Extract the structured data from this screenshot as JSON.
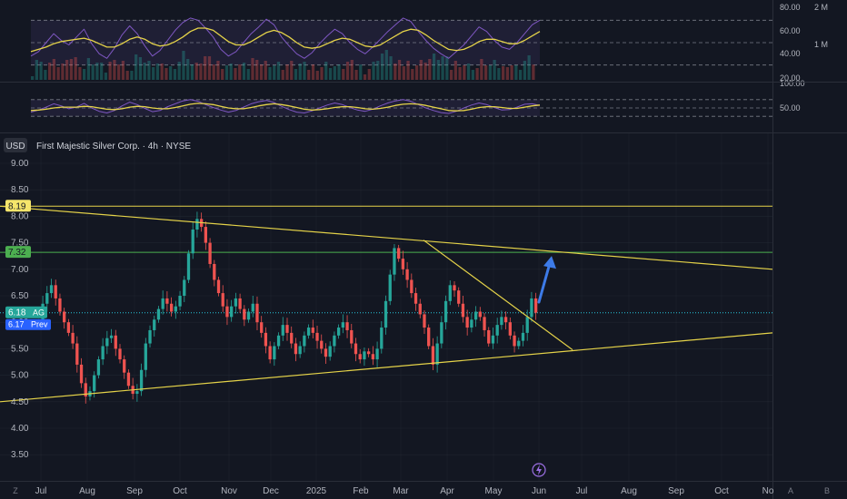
{
  "symbol": {
    "currency": "USD",
    "title": "First Majestic Silver Corp. · 4h · NYSE"
  },
  "colors": {
    "background": "#131722",
    "panel": "#1e2230",
    "grid": "#2a2e39",
    "up": "#26a69a",
    "down": "#ef5350",
    "trendline": "#e5d349",
    "level": "#4caf50",
    "rsi": "#7e57c2",
    "rsi_ma": "#e5d349",
    "arrow": "#3d7be8",
    "price_line": "#26c6da"
  },
  "labels": {
    "level_upper": "8.19",
    "level_green": "7.32",
    "price_last": "6.18",
    "price_last_tag": "AG",
    "price_prev": "6.17",
    "price_prev_tag": "Prev"
  },
  "bottom_bar": {
    "left_button": "Z",
    "right_button_a": "A",
    "right_button_b": "B"
  },
  "chart_data": [
    {
      "type": "line",
      "panel": "indicator-1",
      "y_ticks": [
        "80.00",
        "60.00",
        "40.00",
        "20.00"
      ],
      "volume_ticks": [
        "2 M",
        "1 M"
      ],
      "ylim": [
        20,
        80
      ],
      "bands": [
        70,
        50,
        30
      ],
      "series": [
        {
          "values": [
            38,
            42,
            50,
            58,
            52,
            48,
            55,
            62,
            49,
            40,
            36,
            45,
            57,
            65,
            58,
            47,
            38,
            43,
            52,
            61,
            68,
            72,
            70,
            63,
            55,
            44,
            38,
            42,
            50,
            58,
            64,
            71,
            66,
            55,
            47,
            40,
            36,
            41,
            49,
            56,
            62,
            58,
            50,
            44,
            40,
            46,
            53,
            60,
            66,
            72,
            69,
            60,
            52,
            45,
            40,
            36,
            42,
            48,
            56,
            64,
            60,
            52,
            46,
            44,
            50,
            58,
            66,
            70
          ]
        },
        {
          "values": [
            42,
            44,
            46,
            49,
            51,
            52,
            53,
            54,
            52,
            49,
            46,
            46,
            49,
            53,
            55,
            53,
            49,
            47,
            48,
            51,
            55,
            60,
            63,
            63,
            61,
            56,
            51,
            48,
            48,
            51,
            55,
            59,
            61,
            59,
            55,
            50,
            46,
            45,
            46,
            49,
            52,
            54,
            53,
            50,
            47,
            46,
            48,
            52,
            56,
            60,
            62,
            61,
            57,
            52,
            48,
            44,
            43,
            44,
            47,
            51,
            53,
            53,
            51,
            49,
            49,
            52,
            56,
            60
          ]
        }
      ]
    },
    {
      "type": "line",
      "panel": "indicator-2",
      "y_ticks": [
        "100.00",
        "50.00"
      ],
      "ylim": [
        0,
        100
      ],
      "bands": [
        70,
        50,
        30
      ],
      "series": [
        {
          "values": [
            40,
            45,
            52,
            60,
            55,
            48,
            52,
            61,
            50,
            42,
            38,
            44,
            55,
            64,
            58,
            49,
            41,
            44,
            53,
            60,
            67,
            70,
            66,
            58,
            51,
            45,
            40,
            44,
            52,
            60,
            65,
            68,
            63,
            54,
            46,
            40,
            38,
            43,
            50,
            57,
            62,
            58,
            51,
            45,
            42,
            47,
            55,
            62,
            67,
            70,
            66,
            58,
            50,
            44,
            39,
            37,
            42,
            50,
            57,
            62,
            58,
            51,
            45,
            46,
            52,
            59,
            60,
            56
          ]
        },
        {
          "values": [
            44,
            45,
            47,
            50,
            52,
            52,
            52,
            54,
            53,
            50,
            47,
            46,
            48,
            52,
            54,
            53,
            50,
            48,
            48,
            51,
            55,
            59,
            61,
            60,
            58,
            54,
            50,
            48,
            48,
            51,
            55,
            58,
            60,
            58,
            55,
            51,
            47,
            45,
            46,
            48,
            51,
            53,
            53,
            51,
            48,
            47,
            49,
            52,
            56,
            59,
            60,
            59,
            56,
            52,
            48,
            44,
            43,
            44,
            47,
            51,
            53,
            53,
            51,
            49,
            49,
            52,
            55,
            57
          ]
        }
      ]
    },
    {
      "type": "candlestick",
      "panel": "price",
      "ylabel": "USD",
      "ylim": [
        3.0,
        9.4
      ],
      "y_ticks": [
        "9.00",
        "8.50",
        "8.00",
        "7.50",
        "7.00",
        "6.50",
        "6.00",
        "5.50",
        "5.00",
        "4.50",
        "4.00",
        "3.50"
      ],
      "x_ticks": [
        "Jul",
        "Aug",
        "Sep",
        "Oct",
        "Nov",
        "Dec",
        "2025",
        "Feb",
        "Mar",
        "Apr",
        "May",
        "Jun",
        "Jul",
        "Aug",
        "Sep",
        "Oct",
        "No"
      ],
      "closes": [
        6.0,
        6.35,
        6.55,
        6.7,
        6.45,
        6.2,
        6.0,
        5.8,
        5.6,
        5.2,
        4.85,
        4.6,
        4.7,
        5.0,
        5.3,
        5.55,
        5.7,
        5.75,
        5.5,
        5.3,
        5.05,
        4.8,
        4.65,
        4.7,
        5.1,
        5.6,
        5.85,
        6.05,
        6.25,
        6.45,
        6.35,
        6.2,
        6.3,
        6.5,
        6.8,
        7.3,
        7.75,
        7.95,
        7.8,
        7.5,
        7.1,
        6.8,
        6.55,
        6.3,
        6.1,
        6.3,
        6.45,
        6.25,
        6.05,
        6.2,
        6.35,
        6.0,
        5.8,
        5.55,
        5.3,
        5.55,
        5.75,
        5.95,
        5.8,
        5.6,
        5.4,
        5.55,
        5.75,
        5.9,
        5.8,
        5.65,
        5.5,
        5.35,
        5.55,
        5.75,
        5.9,
        6.0,
        5.85,
        5.6,
        5.4,
        5.3,
        5.45,
        5.4,
        5.3,
        5.5,
        5.9,
        6.4,
        6.9,
        7.4,
        7.2,
        7.0,
        6.8,
        6.55,
        6.35,
        6.15,
        5.9,
        5.55,
        5.2,
        5.6,
        6.0,
        6.4,
        6.7,
        6.6,
        6.35,
        6.1,
        5.9,
        6.05,
        6.2,
        6.1,
        5.85,
        5.6,
        5.75,
        5.95,
        6.1,
        6.0,
        5.75,
        5.55,
        5.65,
        5.8,
        6.1,
        6.45,
        6.18
      ],
      "levels": [
        8.19,
        7.32,
        6.18
      ],
      "trendlines": [
        {
          "name": "upper-resistance",
          "from": [
            "Jun-24",
            8.19
          ],
          "to": [
            "Nov-25",
            7.0
          ]
        },
        {
          "name": "lower-support",
          "from": [
            "Jun-24",
            4.5
          ],
          "to": [
            "Nov-25",
            5.8
          ]
        },
        {
          "name": "falling-wedge-top",
          "from": [
            "Mar-25",
            7.55
          ],
          "to": [
            "Jun-25",
            5.48
          ]
        }
      ],
      "projection_arrow": {
        "from": 6.38,
        "to": 7.32
      }
    }
  ]
}
